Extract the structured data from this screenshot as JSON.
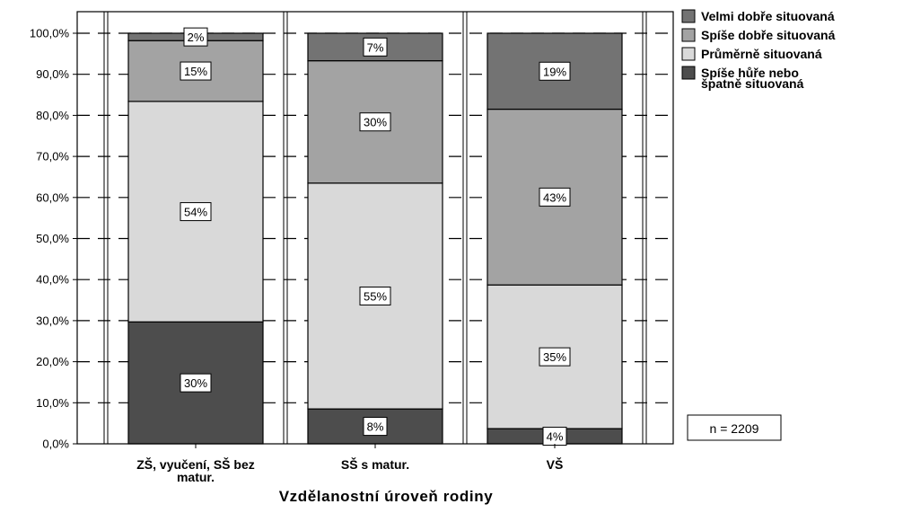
{
  "chart_data": {
    "type": "bar",
    "stacked": true,
    "percent": true,
    "categories": [
      [
        "ZŠ, vyučení, SŠ bez",
        "matur."
      ],
      [
        "SŠ s matur."
      ],
      [
        "VŠ"
      ]
    ],
    "series": [
      {
        "name": "Spíše hůře nebo|špatně situovaná",
        "values": [
          29.7,
          8.5,
          3.7
        ],
        "labels": [
          "30%",
          "8%",
          "4%"
        ],
        "color": "#4d4d4d"
      },
      {
        "name": "Průměrně situovaná",
        "values": [
          53.7,
          55.0,
          35.0
        ],
        "labels": [
          "54%",
          "55%",
          "35%"
        ],
        "color": "#d9d9d9"
      },
      {
        "name": "Spíše dobře situovaná",
        "values": [
          14.8,
          29.8,
          42.8
        ],
        "labels": [
          "15%",
          "30%",
          "43%"
        ],
        "color": "#a3a3a3"
      },
      {
        "name": "Velmi dobře situovaná",
        "values": [
          1.8,
          6.7,
          18.5
        ],
        "labels": [
          "2%",
          "7%",
          "19%"
        ],
        "color": "#737373"
      }
    ],
    "legend_order": [
      3,
      2,
      1,
      0
    ],
    "y_ticks": [
      "0,0%",
      "10,0%",
      "20,0%",
      "30,0%",
      "40,0%",
      "50,0%",
      "60,0%",
      "70,0%",
      "80,0%",
      "90,0%",
      "100,0%"
    ],
    "ylim": [
      0,
      100
    ],
    "xlabel": "Vzdělanostní úroveň rodiny",
    "ylabel": "",
    "title": "",
    "grid": "horizontal dashed",
    "legend_position": "right-top",
    "note": "n = 2209"
  }
}
